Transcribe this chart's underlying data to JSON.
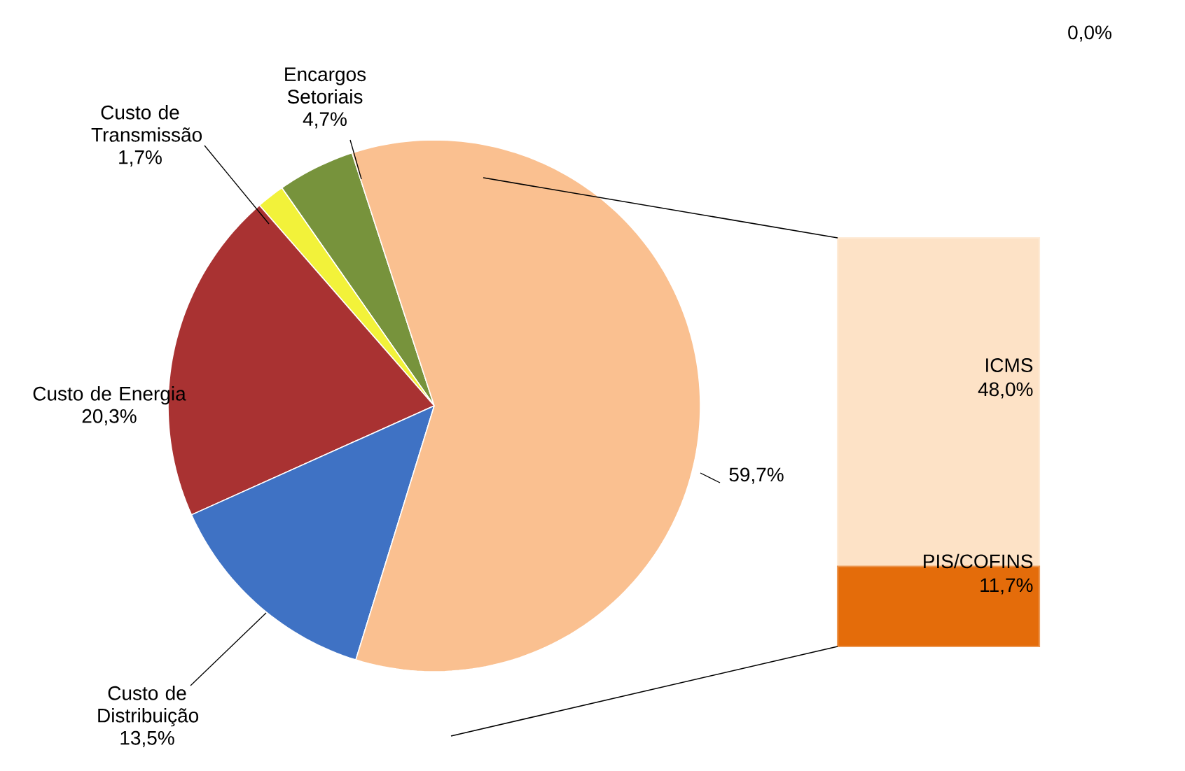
{
  "chart_data": [
    {
      "type": "pie",
      "categories": [
        "Encargos Setoriais",
        "Custo de Transmissão",
        "Custo de Energia",
        "Custo de Distribuição",
        null
      ],
      "values": [
        4.7,
        1.7,
        20.3,
        13.5,
        59.7
      ],
      "value_labels": [
        "4,7%",
        "1,7%",
        "20,3%",
        "13,5%",
        "59,7%"
      ],
      "colors": [
        "#77933c",
        "#f2f23a",
        "#a93232",
        "#3f72c4",
        "#fac090"
      ]
    },
    {
      "type": "bar",
      "stacked": true,
      "categories": [
        null
      ],
      "series": [
        {
          "name": "PIS/COFINS",
          "color": "#e46c0a",
          "values": [
            11.7
          ],
          "value_labels": [
            "11,7%"
          ]
        },
        {
          "name": "ICMS",
          "color": "#fde2c6",
          "values": [
            48.0
          ],
          "value_labels": [
            "48,0%"
          ]
        }
      ],
      "annotations": [
        "0,0%"
      ]
    }
  ]
}
